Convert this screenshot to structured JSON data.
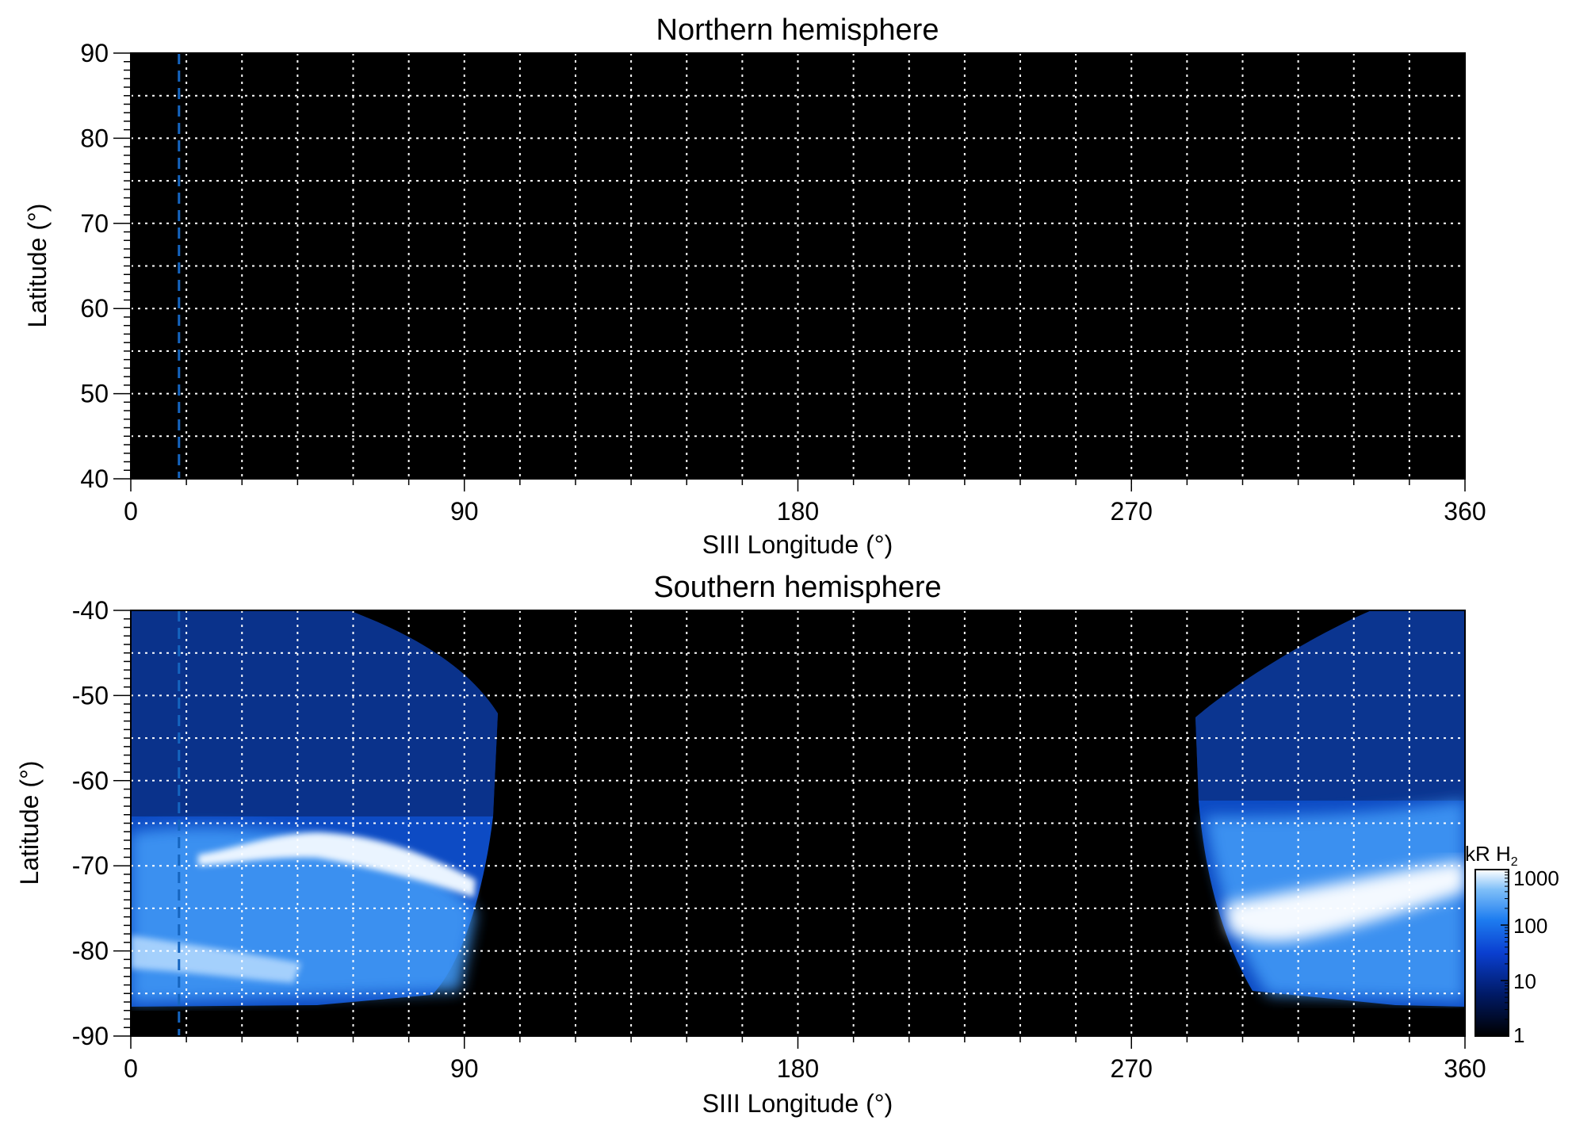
{
  "chart_data": [
    {
      "type": "heatmap",
      "title": "Northern hemisphere",
      "xlabel": "SIII Longitude (°)",
      "ylabel": "Latitude (°)",
      "xlim": [
        0,
        360
      ],
      "ylim": [
        40,
        90
      ],
      "xticks": [
        "0",
        "90",
        "180",
        "270",
        "360"
      ],
      "yticks": [
        "40",
        "50",
        "60",
        "70",
        "80",
        "90"
      ],
      "grid": "dotted, every 15° longitude and 5° latitude",
      "marker_longitude": 13,
      "emission": []
    },
    {
      "type": "heatmap",
      "title": "Southern hemisphere",
      "xlabel": "SIII Longitude (°)",
      "ylabel": "Latitude (°)",
      "xlim": [
        0,
        360
      ],
      "ylim": [
        -90,
        -40
      ],
      "xticks": [
        "0",
        "90",
        "180",
        "270",
        "360"
      ],
      "yticks": [
        "-90",
        "-80",
        "-70",
        "-60",
        "-50",
        "-40"
      ],
      "grid": "dotted, every 15° longitude and 5° latitude",
      "marker_longitude": 13,
      "emission": [
        {
          "longitude_range": [
            0,
            98
          ],
          "latitude_range": [
            -88,
            -40
          ],
          "peak_oval_latitude": -69
        },
        {
          "longitude_range": [
            288,
            360
          ],
          "latitude_range": [
            -86,
            -40
          ],
          "peak_oval_latitude": -76
        }
      ]
    }
  ],
  "colorbar": {
    "label_main": "kR H",
    "label_sub": "2",
    "scale": "log",
    "range": [
      1,
      1000
    ],
    "ticks": [
      "1",
      "10",
      "100",
      "1000"
    ],
    "colors": [
      "#000000",
      "#001a66",
      "#0a3fd0",
      "#1e7df0",
      "#7fbff8",
      "#ffffff"
    ]
  },
  "colors": {
    "background": "#000000",
    "grid": "#ffffff",
    "marker": "#1565c0",
    "emission": "#1e6fe8"
  }
}
